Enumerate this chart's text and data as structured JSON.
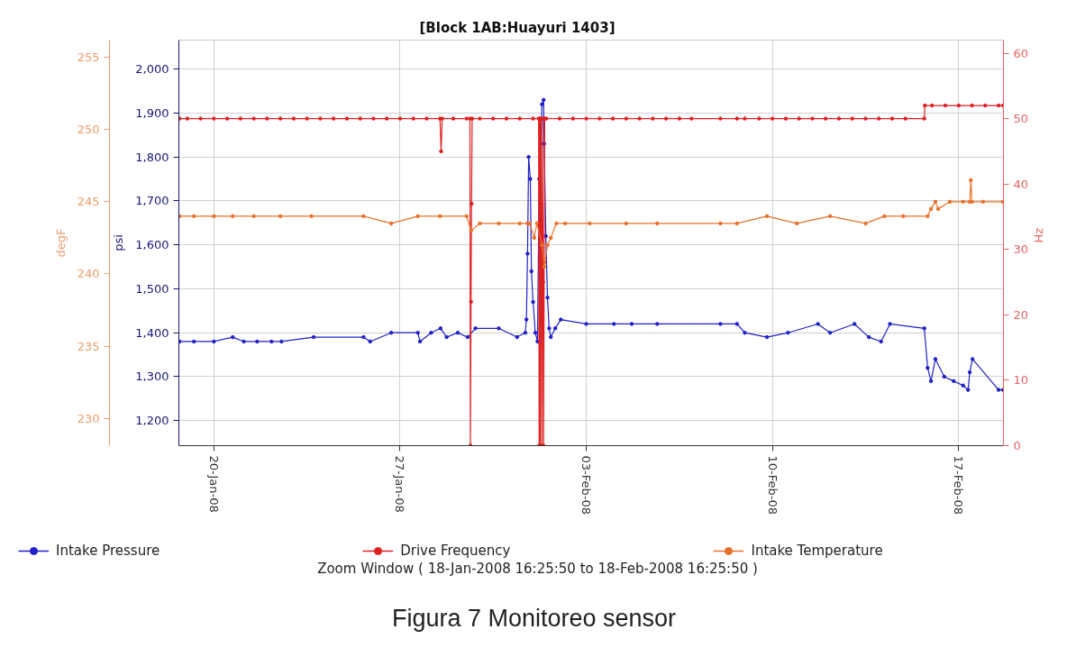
{
  "chart_data": {
    "type": "line",
    "title": "[Block 1AB:Huayuri 1403]",
    "ylabel": "psi",
    "y2label": "Hz",
    "y3label": "degF",
    "xlim": [
      "2008-01-18T16:25",
      "2008-02-18T16:25"
    ],
    "xticks": [
      {
        "value": "2008-01-20",
        "label": "20-Jan-08"
      },
      {
        "value": "2008-01-27",
        "label": "27-Jan-08"
      },
      {
        "value": "2008-02-03",
        "label": "03-Feb-08"
      },
      {
        "value": "2008-02-10",
        "label": "10-Feb-08"
      },
      {
        "value": "2008-02-17",
        "label": "17-Feb-08"
      }
    ],
    "ylim": [
      1143,
      2066
    ],
    "yticks": [
      {
        "value": 1200,
        "label": "1,200"
      },
      {
        "value": 1300,
        "label": "1,300"
      },
      {
        "value": 1400,
        "label": "1,400"
      },
      {
        "value": 1500,
        "label": "1,500"
      },
      {
        "value": 1600,
        "label": "1,600"
      },
      {
        "value": 1700,
        "label": "1,700"
      },
      {
        "value": 1800,
        "label": "1,800"
      },
      {
        "value": 1900,
        "label": "1,900"
      },
      {
        "value": 2000,
        "label": "2,000"
      }
    ],
    "y2lim": [
      0,
      62
    ],
    "y2ticks": [
      0,
      10,
      20,
      30,
      40,
      50,
      60
    ],
    "y3lim": [
      228.1,
      256.2
    ],
    "y3ticks": [
      230,
      235,
      240,
      245,
      250,
      255
    ],
    "grid": true,
    "legend": "bottom",
    "marker": "circle",
    "line_style": "solid",
    "annotations": [
      "Zoom Window ( 18-Jan-2008 16:25:50 to 18-Feb-2008 16:25:50 )",
      "Figura 7 Monitoreo sensor"
    ],
    "series": [
      {
        "name": "Intake Pressure",
        "color": "#2020c8",
        "axis": "y",
        "x": [
          "2008-01-18T17:00",
          "2008-01-19T06:00",
          "2008-01-20T00:00",
          "2008-01-20T17:00",
          "2008-01-21T03:00",
          "2008-01-21T15:00",
          "2008-01-22T04:00",
          "2008-01-22T13:00",
          "2008-01-23T18:00",
          "2008-01-25T15:00",
          "2008-01-25T21:00",
          "2008-01-26T16:00",
          "2008-01-27T16:00",
          "2008-01-27T18:00",
          "2008-01-28T04:00",
          "2008-01-28T12:30",
          "2008-01-28T18:00",
          "2008-01-29T04:00",
          "2008-01-29T13:00",
          "2008-01-29T20:00",
          "2008-01-30T17:00",
          "2008-01-31T09:30",
          "2008-01-31T17:00",
          "2008-01-31T18:00",
          "2008-01-31T19:00",
          "2008-01-31T20:00",
          "2008-01-31T21:30",
          "2008-01-31T22:30",
          "2008-02-01T00:00",
          "2008-02-01T02:00",
          "2008-02-01T04:00",
          "2008-02-01T05:30",
          "2008-02-01T07:00",
          "2008-02-01T08:00",
          "2008-02-01T09:30",
          "2008-02-01T10:00",
          "2008-02-01T11:30",
          "2008-02-01T13:00",
          "2008-02-01T14:30",
          "2008-02-01T16:00",
          "2008-02-01T20:00",
          "2008-02-02T01:00",
          "2008-02-03T00:00",
          "2008-02-04T01:00",
          "2008-02-04T17:00",
          "2008-02-05T16:00",
          "2008-02-08T01:00",
          "2008-02-08T16:00",
          "2008-02-08T23:00",
          "2008-02-09T19:00",
          "2008-02-10T14:00",
          "2008-02-11T17:00",
          "2008-02-12T04:00",
          "2008-02-13T02:00",
          "2008-02-13T15:00",
          "2008-02-14T02:00",
          "2008-02-14T10:00",
          "2008-02-15T17:00",
          "2008-02-15T20:00",
          "2008-02-15T23:00",
          "2008-02-16T03:00",
          "2008-02-16T11:00",
          "2008-02-16T19:30",
          "2008-02-17T04:00",
          "2008-02-17T08:30",
          "2008-02-17T10:00",
          "2008-02-17T12:30",
          "2008-02-18T12:00",
          "2008-02-18T16:00"
        ],
        "values": [
          1380,
          1380,
          1380,
          1390,
          1380,
          1380,
          1380,
          1380,
          1390,
          1390,
          1380,
          1400,
          1400,
          1380,
          1400,
          1410,
          1390,
          1400,
          1390,
          1410,
          1410,
          1390,
          1400,
          1430,
          1580,
          1800,
          1750,
          1540,
          1470,
          1400,
          1380,
          1750,
          1830,
          1920,
          1930,
          1830,
          1620,
          1480,
          1410,
          1390,
          1410,
          1430,
          1420,
          1420,
          1420,
          1420,
          1420,
          1420,
          1400,
          1390,
          1400,
          1420,
          1400,
          1420,
          1390,
          1380,
          1420,
          1410,
          1320,
          1290,
          1340,
          1300,
          1290,
          1280,
          1270,
          1310,
          1340,
          1270,
          1270
        ]
      },
      {
        "name": "Drive Frequency",
        "color": "#dd2020",
        "axis": "y2",
        "x": [
          "2008-01-18T17:00",
          "2008-01-19T00:00",
          "2008-01-19T12:00",
          "2008-01-20T00:00",
          "2008-01-20T12:00",
          "2008-01-21T00:00",
          "2008-01-21T12:00",
          "2008-01-22T00:00",
          "2008-01-22T12:00",
          "2008-01-23T00:00",
          "2008-01-23T12:00",
          "2008-01-24T00:00",
          "2008-01-24T12:00",
          "2008-01-25T00:00",
          "2008-01-25T12:00",
          "2008-01-26T00:00",
          "2008-01-26T12:00",
          "2008-01-27T00:00",
          "2008-01-27T12:00",
          "2008-01-28T00:00",
          "2008-01-28T12:00",
          "2008-01-28T13:00",
          "2008-01-28T14:00",
          "2008-01-29T00:00",
          "2008-01-29T12:00",
          "2008-01-29T15:00",
          "2008-01-29T15:30",
          "2008-01-29T16:00",
          "2008-01-29T16:30",
          "2008-01-29T17:00",
          "2008-01-30T00:00",
          "2008-01-30T12:00",
          "2008-01-31T00:00",
          "2008-01-31T12:00",
          "2008-02-01T00:00",
          "2008-02-01T05:00",
          "2008-02-01T05:30",
          "2008-02-01T06:00",
          "2008-02-01T06:30",
          "2008-02-01T07:00",
          "2008-02-01T07:30",
          "2008-02-01T08:00",
          "2008-02-01T08:30",
          "2008-02-01T09:00",
          "2008-02-01T09:30",
          "2008-02-01T10:00",
          "2008-02-01T10:30",
          "2008-02-01T12:00",
          "2008-02-02T00:00",
          "2008-02-02T12:00",
          "2008-02-03T00:00",
          "2008-02-03T12:00",
          "2008-02-04T00:00",
          "2008-02-04T12:00",
          "2008-02-05T00:00",
          "2008-02-05T12:00",
          "2008-02-06T00:00",
          "2008-02-06T12:00",
          "2008-02-06T23:00",
          "2008-02-08T01:00",
          "2008-02-08T16:00",
          "2008-02-08T23:00",
          "2008-02-09T12:00",
          "2008-02-10T00:00",
          "2008-02-10T12:00",
          "2008-02-11T00:00",
          "2008-02-11T12:00",
          "2008-02-12T00:00",
          "2008-02-12T12:00",
          "2008-02-13T00:00",
          "2008-02-13T12:00",
          "2008-02-14T00:00",
          "2008-02-14T12:00",
          "2008-02-15T00:00",
          "2008-02-15T17:00",
          "2008-02-15T17:30",
          "2008-02-16T00:00",
          "2008-02-16T12:00",
          "2008-02-17T00:00",
          "2008-02-17T12:00",
          "2008-02-18T00:00",
          "2008-02-18T12:00",
          "2008-02-18T16:00"
        ],
        "values": [
          50,
          50,
          50,
          50,
          50,
          50,
          50,
          50,
          50,
          50,
          50,
          50,
          50,
          50,
          50,
          50,
          50,
          50,
          50,
          50,
          50,
          45,
          50,
          50,
          50,
          50,
          0,
          22,
          37,
          50,
          50,
          50,
          50,
          50,
          50,
          50,
          0,
          50,
          0,
          50,
          30,
          0,
          50,
          25,
          0,
          28,
          50,
          50,
          50,
          50,
          50,
          50,
          50,
          50,
          50,
          50,
          50,
          50,
          50,
          50,
          50,
          50,
          50,
          50,
          50,
          50,
          50,
          50,
          50,
          50,
          50,
          50,
          50,
          50,
          50,
          52,
          52,
          52,
          52,
          52,
          52,
          52,
          52
        ]
      },
      {
        "name": "Intake Temperature",
        "color": "#e8702a",
        "axis": "y3",
        "x": [
          "2008-01-18T17:00",
          "2008-01-19T06:00",
          "2008-01-20T00:00",
          "2008-01-20T17:00",
          "2008-01-21T12:00",
          "2008-01-22T12:00",
          "2008-01-23T16:00",
          "2008-01-25T15:00",
          "2008-01-26T16:00",
          "2008-01-27T16:00",
          "2008-01-28T12:00",
          "2008-01-29T12:00",
          "2008-01-29T16:00",
          "2008-01-30T00:00",
          "2008-01-30T17:00",
          "2008-01-31T12:00",
          "2008-01-31T19:00",
          "2008-01-31T21:00",
          "2008-02-01T01:00",
          "2008-02-01T03:30",
          "2008-02-01T08:00",
          "2008-02-01T10:00",
          "2008-02-01T13:00",
          "2008-02-01T16:00",
          "2008-02-01T21:00",
          "2008-02-02T05:00",
          "2008-02-03T03:00",
          "2008-02-04T12:00",
          "2008-02-05T16:00",
          "2008-02-08T01:00",
          "2008-02-08T16:00",
          "2008-02-09T19:00",
          "2008-02-10T22:00",
          "2008-02-12T04:00",
          "2008-02-13T12:00",
          "2008-02-14T05:00",
          "2008-02-14T22:00",
          "2008-02-15T20:00",
          "2008-02-15T23:00",
          "2008-02-16T03:00",
          "2008-02-16T05:30",
          "2008-02-16T16:00",
          "2008-02-17T04:00",
          "2008-02-17T10:00",
          "2008-02-17T11:00",
          "2008-02-17T12:00",
          "2008-02-17T22:00",
          "2008-02-18T16:00"
        ],
        "values": [
          244,
          244,
          244,
          244,
          244,
          244,
          244,
          244,
          243.5,
          244,
          244,
          244,
          243,
          243.5,
          243.5,
          243.5,
          243.5,
          243.5,
          242.5,
          243.5,
          242,
          240.5,
          242,
          242.5,
          243.5,
          243.5,
          243.5,
          243.5,
          243.5,
          243.5,
          243.5,
          244,
          243.5,
          244,
          243.5,
          244,
          244,
          244,
          244.5,
          245,
          244.5,
          245,
          245,
          245,
          246.5,
          245,
          245,
          245
        ]
      }
    ]
  }
}
